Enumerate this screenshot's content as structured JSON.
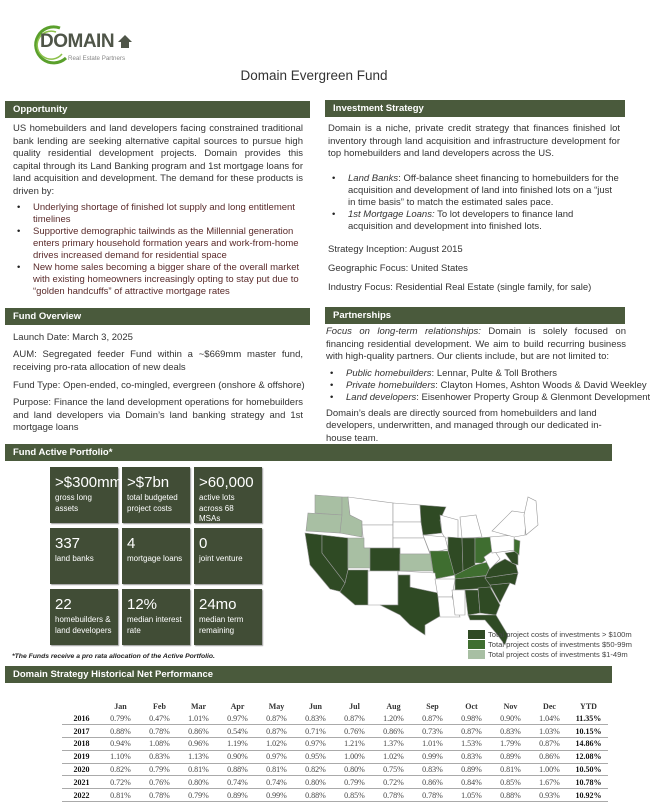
{
  "logo": {
    "name": "DOMAIN",
    "tagline": "Real Estate Partners"
  },
  "title": "Domain Evergreen Fund",
  "opportunity": {
    "header": "Opportunity",
    "body": "US homebuilders and land developers facing constrained traditional bank lending are seeking alternative capital sources to pursue high quality residential development projects. Domain provides this capital through its Land Banking program and 1st mortgage loans for land acquisition and development. The demand for these products is driven by:",
    "bullets": [
      "Underlying shortage of finished lot supply and long entitlement timelines",
      "Supportive demographic tailwinds as the Millennial generation enters primary household formation years and work-from-home drives increased demand for residential space",
      "New home sales becoming a bigger share of the overall market with existing homeowners increasingly opting to stay put due to “golden handcuffs” of attractive mortgage rates"
    ]
  },
  "strategy": {
    "header": "Investment Strategy",
    "body": "Domain is a niche, private credit strategy that finances finished lot inventory through land acquisition and infrastructure development for top homebuilders and land developers across the US.",
    "bullets": [
      {
        "term": "Land Banks",
        "text": ": Off-balance sheet financing to homebuilders for the acquisition and development of land into finished lots on a “just in time basis” to match the estimated sales pace."
      },
      {
        "term": "1st Mortgage Loans:",
        "text": " To lot developers to finance land acquisition and development into finished lots."
      }
    ],
    "inception": "Strategy Inception: August 2015",
    "geo": "Geographic Focus: United States",
    "industry": "Industry Focus: Residential Real Estate (single family, for sale)"
  },
  "overview": {
    "header": "Fund Overview",
    "launch": "Launch Date: March 3, 2025",
    "aum": "AUM: Segregated feeder Fund within a ~$669mm master fund, receiving pro-rata allocation of new deals",
    "type": "Fund Type: Open-ended, co-mingled, evergreen (onshore & offshore)",
    "purpose": "Purpose: Finance the land development operations for homebuilders and land developers via Domain’s land banking strategy and 1st mortgage loans"
  },
  "partnerships": {
    "header": "Partnerships",
    "lead": "Focus on long-term relationships:",
    "body": "  Domain is solely focused on financing residential development. We aim to build recurring business with high-quality partners. Our clients include, but are not limited to:",
    "bullets": [
      {
        "term": "Public homebuilders",
        "text": ": Lennar, Pulte & Toll Brothers"
      },
      {
        "term": "Private homebuilders",
        "text": ": Clayton Homes, Ashton Woods & David Weekley"
      },
      {
        "term": "Land developers",
        "text": ": Eisenhower Property Group & Glenmont Development"
      }
    ],
    "closing": "Domain’s deals are directly sourced from homebuilders and land developers, underwritten, and managed through our dedicated in-house team."
  },
  "portfolio": {
    "header": "Fund Active Portfolio*",
    "tiles": [
      {
        "value": ">$300mm",
        "label": "gross long assets"
      },
      {
        "value": ">$7bn",
        "label": "total budgeted project costs"
      },
      {
        "value": ">60,000",
        "label": "active lots across 68 MSAs"
      },
      {
        "value": "337",
        "label": "land banks"
      },
      {
        "value": "4",
        "label": "mortgage loans"
      },
      {
        "value": "0",
        "label": "joint venture"
      },
      {
        "value": "22",
        "label": "homebuilders & land developers"
      },
      {
        "value": "12%",
        "label": "median interest rate"
      },
      {
        "value": "24mo",
        "label": "median term remaining"
      }
    ],
    "footnote": "*The Funds receive a pro rata allocation of the Active Portfolio."
  },
  "map": {
    "colors": {
      "over_100m": "#2f4a24",
      "50_99m": "#3f6e30",
      "1_49m": "#a8bfa3",
      "none": "#ffffff"
    },
    "legend": [
      "Total project costs of investments > $100m",
      "Total project costs of investments $50-99m",
      "Total project costs of investments $1-49m"
    ],
    "state_tiers": {
      "WA": "1_49m",
      "OR": "1_49m",
      "ID": "1_49m",
      "UT": "1_49m",
      "KS": "1_49m",
      "MO": "50_99m",
      "KY": "50_99m",
      "OH": "50_99m",
      "NJ": "50_99m",
      "CA": "over_100m",
      "NV": "over_100m",
      "AZ": "over_100m",
      "CO": "over_100m",
      "TX": "over_100m",
      "MN": "over_100m",
      "IL": "over_100m",
      "IN": "over_100m",
      "TN": "over_100m",
      "AL": "over_100m",
      "GA": "over_100m",
      "FL": "over_100m",
      "SC": "over_100m",
      "NC": "over_100m",
      "VA": "over_100m",
      "MD": "over_100m"
    }
  },
  "performance": {
    "header": "Domain Strategy Historical Net Performance",
    "columns": [
      "",
      "Jan",
      "Feb",
      "Mar",
      "Apr",
      "May",
      "Jun",
      "Jul",
      "Aug",
      "Sep",
      "Oct",
      "Nov",
      "Dec",
      "YTD"
    ],
    "rows": [
      [
        "2016",
        "0.79%",
        "0.47%",
        "1.01%",
        "0.97%",
        "0.87%",
        "0.83%",
        "0.87%",
        "1.20%",
        "0.87%",
        "0.98%",
        "0.90%",
        "1.04%",
        "11.35%"
      ],
      [
        "2017",
        "0.88%",
        "0.78%",
        "0.86%",
        "0.54%",
        "0.87%",
        "0.71%",
        "0.76%",
        "0.86%",
        "0.73%",
        "0.87%",
        "0.83%",
        "1.03%",
        "10.15%"
      ],
      [
        "2018",
        "0.94%",
        "1.08%",
        "0.96%",
        "1.19%",
        "1.02%",
        "0.97%",
        "1.21%",
        "1.37%",
        "1.01%",
        "1.53%",
        "1.79%",
        "0.87%",
        "14.86%"
      ],
      [
        "2019",
        "1.10%",
        "0.83%",
        "1.13%",
        "0.90%",
        "0.97%",
        "0.95%",
        "1.00%",
        "1.02%",
        "0.99%",
        "0.83%",
        "0.89%",
        "0.86%",
        "12.08%"
      ],
      [
        "2020",
        "0.82%",
        "0.79%",
        "0.81%",
        "0.88%",
        "0.81%",
        "0.82%",
        "0.80%",
        "0.75%",
        "0.83%",
        "0.89%",
        "0.81%",
        "1.00%",
        "10.50%"
      ],
      [
        "2021",
        "0.72%",
        "0.76%",
        "0.80%",
        "0.74%",
        "0.74%",
        "0.80%",
        "0.79%",
        "0.72%",
        "0.86%",
        "0.84%",
        "0.85%",
        "1.67%",
        "10.78%"
      ],
      [
        "2022",
        "0.81%",
        "0.78%",
        "0.79%",
        "0.89%",
        "0.99%",
        "0.88%",
        "0.85%",
        "0.78%",
        "0.78%",
        "1.05%",
        "0.88%",
        "0.93%",
        "10.92%"
      ]
    ]
  }
}
